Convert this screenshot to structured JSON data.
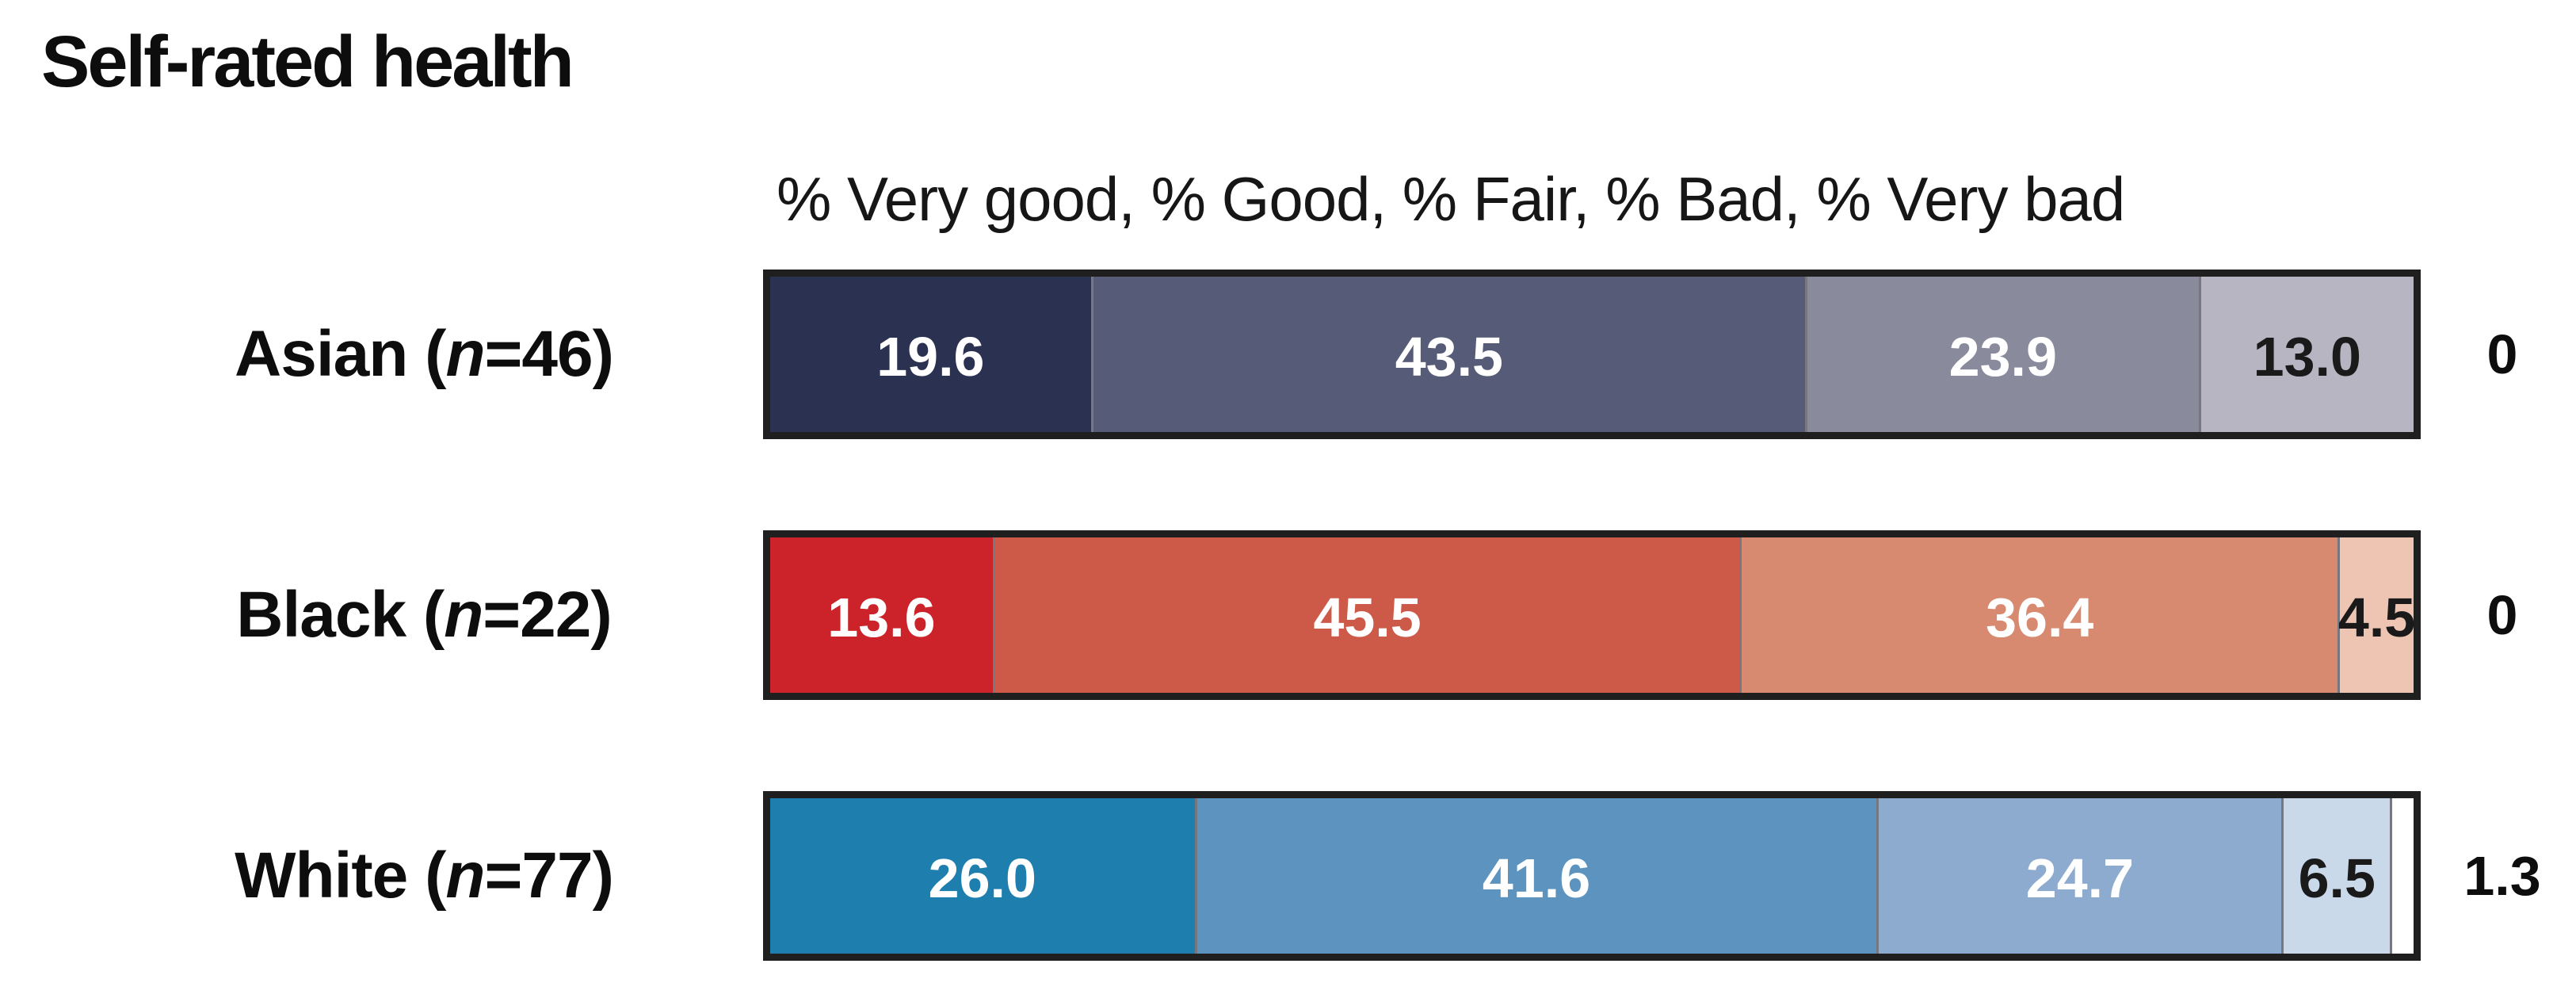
{
  "title": "Self-rated health",
  "subtitle": "% Very good, % Good, % Fair, % Bad, % Very bad",
  "colors": {
    "background": "#ffffff",
    "bar_border": "#1f1f1f",
    "segment_divider": "#77777e",
    "text": "#0d0d0d"
  },
  "chart_data": {
    "type": "bar",
    "orientation": "horizontal",
    "stacked": true,
    "units": "percent",
    "xlim": [
      0,
      100
    ],
    "grid": false,
    "title": "Self-rated health",
    "legend_caption": "% Very good, % Good, % Fair, % Bad, % Very bad",
    "segment_names": [
      "Very good",
      "Good",
      "Fair",
      "Bad",
      "Very bad"
    ],
    "rows": [
      {
        "label_text": "Asian (n=46)",
        "label": {
          "pre": "Asian (",
          "italic": "n",
          "post": "=46)"
        },
        "n": 46,
        "outside_label": "0",
        "segments": [
          {
            "name": "Very good",
            "value": 19.6,
            "display": "19.6",
            "bg": "#2b3150",
            "fg": "#ffffff"
          },
          {
            "name": "Good",
            "value": 43.5,
            "display": "43.5",
            "bg": "#565c77",
            "fg": "#ffffff"
          },
          {
            "name": "Fair",
            "value": 23.9,
            "display": "23.9",
            "bg": "#8a8a9d",
            "fg": "#ffffff"
          },
          {
            "name": "Bad",
            "value": 13.0,
            "display": "13.0",
            "bg": "#b7b5c1",
            "fg": "#1a1a1a"
          },
          {
            "name": "Very bad",
            "value": 0,
            "display": "",
            "bg": "",
            "fg": ""
          }
        ]
      },
      {
        "label_text": "Black (n=22)",
        "label": {
          "pre": "Black (",
          "italic": "n",
          "post": "=22)"
        },
        "n": 22,
        "outside_label": "0",
        "segments": [
          {
            "name": "Very good",
            "value": 13.6,
            "display": "13.6",
            "bg": "#cb2329",
            "fg": "#ffffff"
          },
          {
            "name": "Good",
            "value": 45.5,
            "display": "45.5",
            "bg": "#cd5a48",
            "fg": "#ffffff"
          },
          {
            "name": "Fair",
            "value": 36.4,
            "display": "36.4",
            "bg": "#d88a71",
            "fg": "#ffffff"
          },
          {
            "name": "Bad",
            "value": 4.5,
            "display": "4.5",
            "bg": "#edc5b2",
            "fg": "#1a1a1a"
          },
          {
            "name": "Very bad",
            "value": 0,
            "display": "",
            "bg": "",
            "fg": ""
          }
        ]
      },
      {
        "label_text": "White (n=77)",
        "label": {
          "pre": "White (",
          "italic": "n",
          "post": "=77)"
        },
        "n": 77,
        "outside_label": "1.3",
        "segments": [
          {
            "name": "Very good",
            "value": 26.0,
            "display": "26.0",
            "bg": "#1e7fae",
            "fg": "#ffffff"
          },
          {
            "name": "Good",
            "value": 41.6,
            "display": "41.6",
            "bg": "#5c93bf",
            "fg": "#ffffff"
          },
          {
            "name": "Fair",
            "value": 24.7,
            "display": "24.7",
            "bg": "#8cabce",
            "fg": "#ffffff"
          },
          {
            "name": "Bad",
            "value": 6.5,
            "display": "6.5",
            "bg": "#c9d9ea",
            "fg": "#1a1a1a"
          },
          {
            "name": "Very bad",
            "value": 1.3,
            "display": "",
            "bg": "#ffffff",
            "fg": "#1a1a1a"
          }
        ]
      }
    ]
  }
}
